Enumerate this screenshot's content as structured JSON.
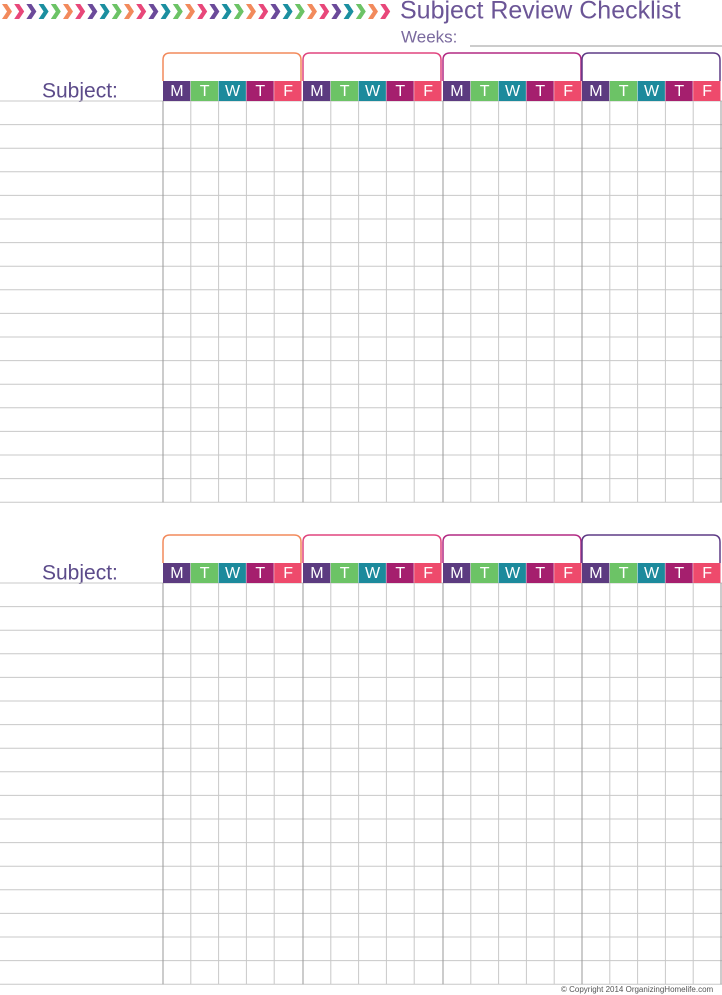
{
  "header": {
    "title": "Subject Review Checklist",
    "weeks_label": "Weeks:"
  },
  "sections": [
    {
      "label": "Subject:",
      "days": [
        "M",
        "T",
        "W",
        "T",
        "F"
      ]
    },
    {
      "label": "Subject:",
      "days": [
        "M",
        "T",
        "W",
        "T",
        "F"
      ]
    }
  ],
  "footer": {
    "copyright": "© Copyright 2014 OrganizingHomelife.com"
  }
}
